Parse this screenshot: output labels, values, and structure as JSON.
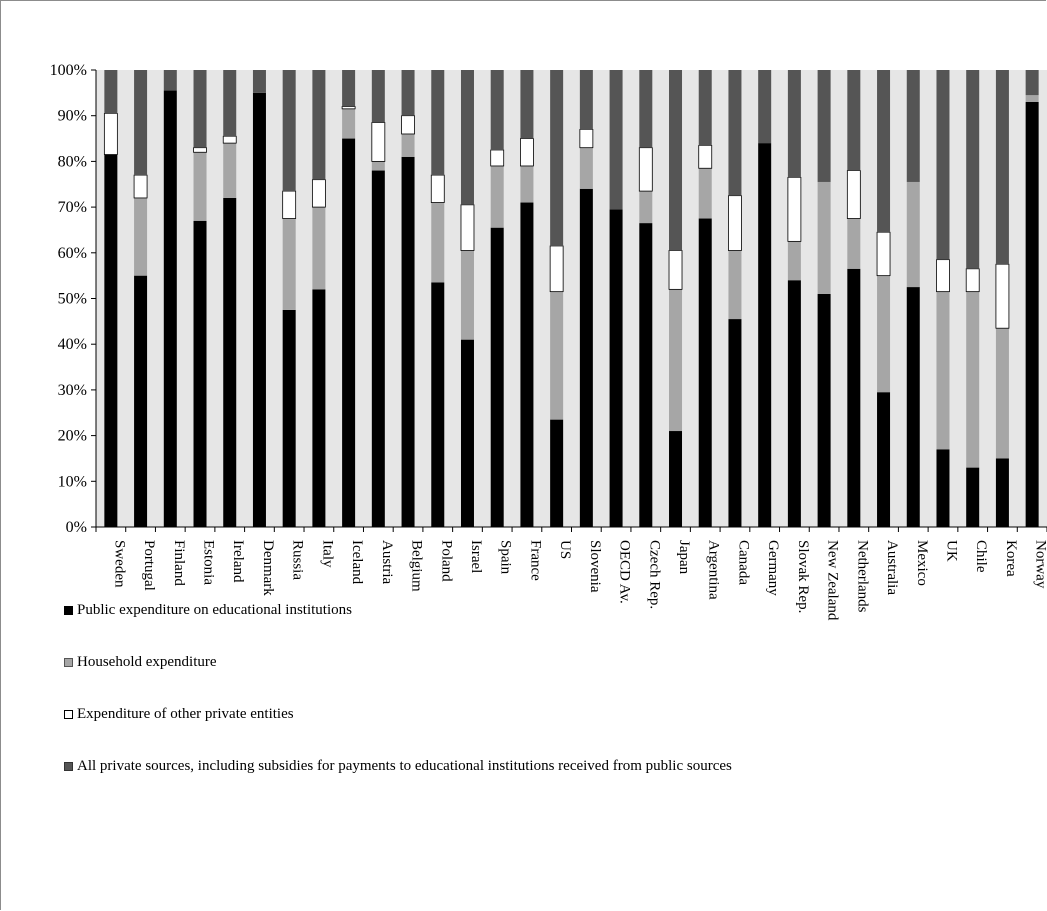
{
  "chart_data": {
    "type": "bar",
    "stacked": true,
    "percent": true,
    "title": "",
    "xlabel": "",
    "ylabel": "",
    "ylim": [
      0,
      100
    ],
    "yticks": [
      "0%",
      "10%",
      "20%",
      "30%",
      "40%",
      "50%",
      "60%",
      "70%",
      "80%",
      "90%",
      "100%"
    ],
    "grid": false,
    "legend_position": "bottom",
    "categories": [
      "Sweden",
      "Portugal",
      "Finland",
      "Estonia",
      "Ireland",
      "Denmark",
      "Russia",
      "Italy",
      "Iceland",
      "Austria",
      "Belgium",
      "Poland",
      "Israel",
      "Spain",
      "France",
      "US",
      "Slovenia",
      "OECD Av.",
      "Czech Rep.",
      "Japan",
      "Argentina",
      "Canada",
      "Germany",
      "Slovak Rep.",
      "New Zealand",
      "Netherlands",
      "Australia",
      "Mexico",
      "UK",
      "Chile",
      "Korea",
      "Norway"
    ],
    "series": [
      {
        "name": "Public expenditure on educational  institutions",
        "color": "#000000",
        "values": [
          81.5,
          55,
          95.5,
          67,
          72,
          95,
          47.5,
          52,
          85,
          78,
          81,
          53.5,
          41,
          65.5,
          71,
          23.5,
          74,
          69.5,
          66.5,
          21,
          67.5,
          45.5,
          84,
          54,
          51,
          56.5,
          29.5,
          52.5,
          17,
          13,
          15,
          93
        ]
      },
      {
        "name": "Household expenditure",
        "color": "#a6a6a6",
        "values": [
          0,
          17,
          0,
          15,
          12,
          0,
          20,
          18,
          6.5,
          2,
          5,
          17.5,
          19.5,
          13.5,
          8,
          28,
          9,
          0,
          7,
          31,
          11,
          15,
          0,
          8.5,
          24.5,
          11,
          25.5,
          23,
          34.5,
          38.5,
          28.5,
          1.5
        ]
      },
      {
        "name": "Expenditure of other private entities",
        "color": "#ffffff",
        "values": [
          9,
          5,
          0,
          1,
          1.5,
          0,
          6,
          6,
          0.5,
          8.5,
          4,
          6,
          10,
          3.5,
          6,
          10,
          4,
          0,
          9.5,
          8.5,
          5,
          12,
          0,
          14,
          0,
          10.5,
          9.5,
          0,
          7,
          5,
          14,
          0
        ]
      },
      {
        "name": "All private sources, including subsidies for payments to educational  institutions received  from public sources",
        "color": "#555555",
        "values": [
          9.5,
          23,
          4.5,
          17,
          14.5,
          5,
          26.5,
          24,
          8,
          11.5,
          10,
          23,
          29.5,
          17.5,
          15,
          38.5,
          13,
          30.5,
          17,
          39.5,
          16.5,
          27.5,
          16,
          23.5,
          24.5,
          22,
          35.5,
          24.5,
          41.5,
          43.5,
          42.5,
          5.5
        ]
      }
    ]
  }
}
